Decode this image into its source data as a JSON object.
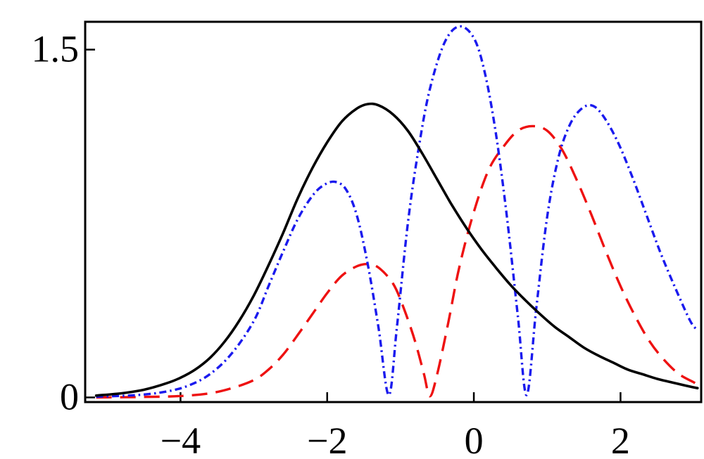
{
  "chart_data": {
    "type": "line",
    "title": "",
    "xlabel": "",
    "ylabel": "",
    "xlim": [
      -5.3,
      3.1
    ],
    "ylim": [
      -0.02,
      1.62
    ],
    "grid": false,
    "legend": "none",
    "x_ticks": [
      {
        "value": -4,
        "label": "−4"
      },
      {
        "value": -2,
        "label": "−2"
      },
      {
        "value": 0,
        "label": "0"
      },
      {
        "value": 2,
        "label": "2"
      }
    ],
    "y_ticks": [
      {
        "value": 0,
        "label": "0"
      },
      {
        "value": 1.5,
        "label": "1.5"
      }
    ],
    "series": [
      {
        "style": "solid",
        "color": "#000000",
        "points": [
          [
            -5.15,
            0.008
          ],
          [
            -4.8,
            0.018
          ],
          [
            -4.5,
            0.033
          ],
          [
            -4.2,
            0.06
          ],
          [
            -4.0,
            0.085
          ],
          [
            -3.8,
            0.12
          ],
          [
            -3.6,
            0.17
          ],
          [
            -3.4,
            0.24
          ],
          [
            -3.2,
            0.33
          ],
          [
            -3.0,
            0.44
          ],
          [
            -2.8,
            0.57
          ],
          [
            -2.6,
            0.71
          ],
          [
            -2.4,
            0.86
          ],
          [
            -2.2,
            0.99
          ],
          [
            -2.0,
            1.1
          ],
          [
            -1.8,
            1.19
          ],
          [
            -1.6,
            1.245
          ],
          [
            -1.45,
            1.265
          ],
          [
            -1.3,
            1.26
          ],
          [
            -1.1,
            1.22
          ],
          [
            -0.9,
            1.15
          ],
          [
            -0.7,
            1.05
          ],
          [
            -0.5,
            0.94
          ],
          [
            -0.3,
            0.83
          ],
          [
            -0.1,
            0.73
          ],
          [
            0.1,
            0.64
          ],
          [
            0.3,
            0.56
          ],
          [
            0.5,
            0.485
          ],
          [
            0.7,
            0.42
          ],
          [
            0.9,
            0.36
          ],
          [
            1.1,
            0.305
          ],
          [
            1.3,
            0.26
          ],
          [
            1.5,
            0.215
          ],
          [
            1.7,
            0.18
          ],
          [
            1.9,
            0.15
          ],
          [
            2.1,
            0.12
          ],
          [
            2.3,
            0.1
          ],
          [
            2.5,
            0.08
          ],
          [
            2.7,
            0.065
          ],
          [
            2.9,
            0.05
          ],
          [
            3.05,
            0.04
          ]
        ]
      },
      {
        "style": "dashed",
        "color": "#ee1111",
        "points": [
          [
            -5.15,
            0.0
          ],
          [
            -4.5,
            0.002
          ],
          [
            -4.0,
            0.006
          ],
          [
            -3.6,
            0.018
          ],
          [
            -3.3,
            0.04
          ],
          [
            -3.0,
            0.075
          ],
          [
            -2.8,
            0.12
          ],
          [
            -2.6,
            0.185
          ],
          [
            -2.4,
            0.27
          ],
          [
            -2.2,
            0.36
          ],
          [
            -2.0,
            0.45
          ],
          [
            -1.8,
            0.525
          ],
          [
            -1.6,
            0.565
          ],
          [
            -1.45,
            0.575
          ],
          [
            -1.3,
            0.56
          ],
          [
            -1.1,
            0.49
          ],
          [
            -0.95,
            0.38
          ],
          [
            -0.8,
            0.24
          ],
          [
            -0.68,
            0.1
          ],
          [
            -0.6,
            0.005
          ],
          [
            -0.5,
            0.1
          ],
          [
            -0.35,
            0.32
          ],
          [
            -0.2,
            0.56
          ],
          [
            0.0,
            0.8
          ],
          [
            0.2,
            0.98
          ],
          [
            0.4,
            1.08
          ],
          [
            0.6,
            1.15
          ],
          [
            0.8,
            1.17
          ],
          [
            1.0,
            1.15
          ],
          [
            1.2,
            1.07
          ],
          [
            1.4,
            0.94
          ],
          [
            1.6,
            0.79
          ],
          [
            1.8,
            0.63
          ],
          [
            2.0,
            0.48
          ],
          [
            2.2,
            0.35
          ],
          [
            2.4,
            0.24
          ],
          [
            2.6,
            0.16
          ],
          [
            2.8,
            0.1
          ],
          [
            3.0,
            0.065
          ],
          [
            3.05,
            0.055
          ]
        ]
      },
      {
        "style": "dash-dot",
        "color": "#1a1aee",
        "points": [
          [
            -5.15,
            0.003
          ],
          [
            -4.6,
            0.01
          ],
          [
            -4.2,
            0.025
          ],
          [
            -3.9,
            0.05
          ],
          [
            -3.6,
            0.1
          ],
          [
            -3.3,
            0.19
          ],
          [
            -3.0,
            0.33
          ],
          [
            -2.8,
            0.48
          ],
          [
            -2.6,
            0.63
          ],
          [
            -2.4,
            0.77
          ],
          [
            -2.2,
            0.87
          ],
          [
            -2.05,
            0.915
          ],
          [
            -1.9,
            0.93
          ],
          [
            -1.75,
            0.9
          ],
          [
            -1.6,
            0.79
          ],
          [
            -1.45,
            0.58
          ],
          [
            -1.3,
            0.3
          ],
          [
            -1.16,
            0.01
          ],
          [
            -1.05,
            0.3
          ],
          [
            -0.9,
            0.75
          ],
          [
            -0.75,
            1.08
          ],
          [
            -0.6,
            1.33
          ],
          [
            -0.4,
            1.53
          ],
          [
            -0.2,
            1.6
          ],
          [
            0.0,
            1.55
          ],
          [
            0.15,
            1.4
          ],
          [
            0.3,
            1.14
          ],
          [
            0.45,
            0.78
          ],
          [
            0.6,
            0.35
          ],
          [
            0.72,
            0.01
          ],
          [
            0.85,
            0.38
          ],
          [
            1.0,
            0.78
          ],
          [
            1.15,
            1.03
          ],
          [
            1.3,
            1.17
          ],
          [
            1.45,
            1.24
          ],
          [
            1.6,
            1.26
          ],
          [
            1.75,
            1.22
          ],
          [
            1.95,
            1.11
          ],
          [
            2.15,
            0.96
          ],
          [
            2.35,
            0.79
          ],
          [
            2.55,
            0.62
          ],
          [
            2.75,
            0.47
          ],
          [
            2.95,
            0.33
          ],
          [
            3.05,
            0.29
          ]
        ]
      }
    ]
  }
}
